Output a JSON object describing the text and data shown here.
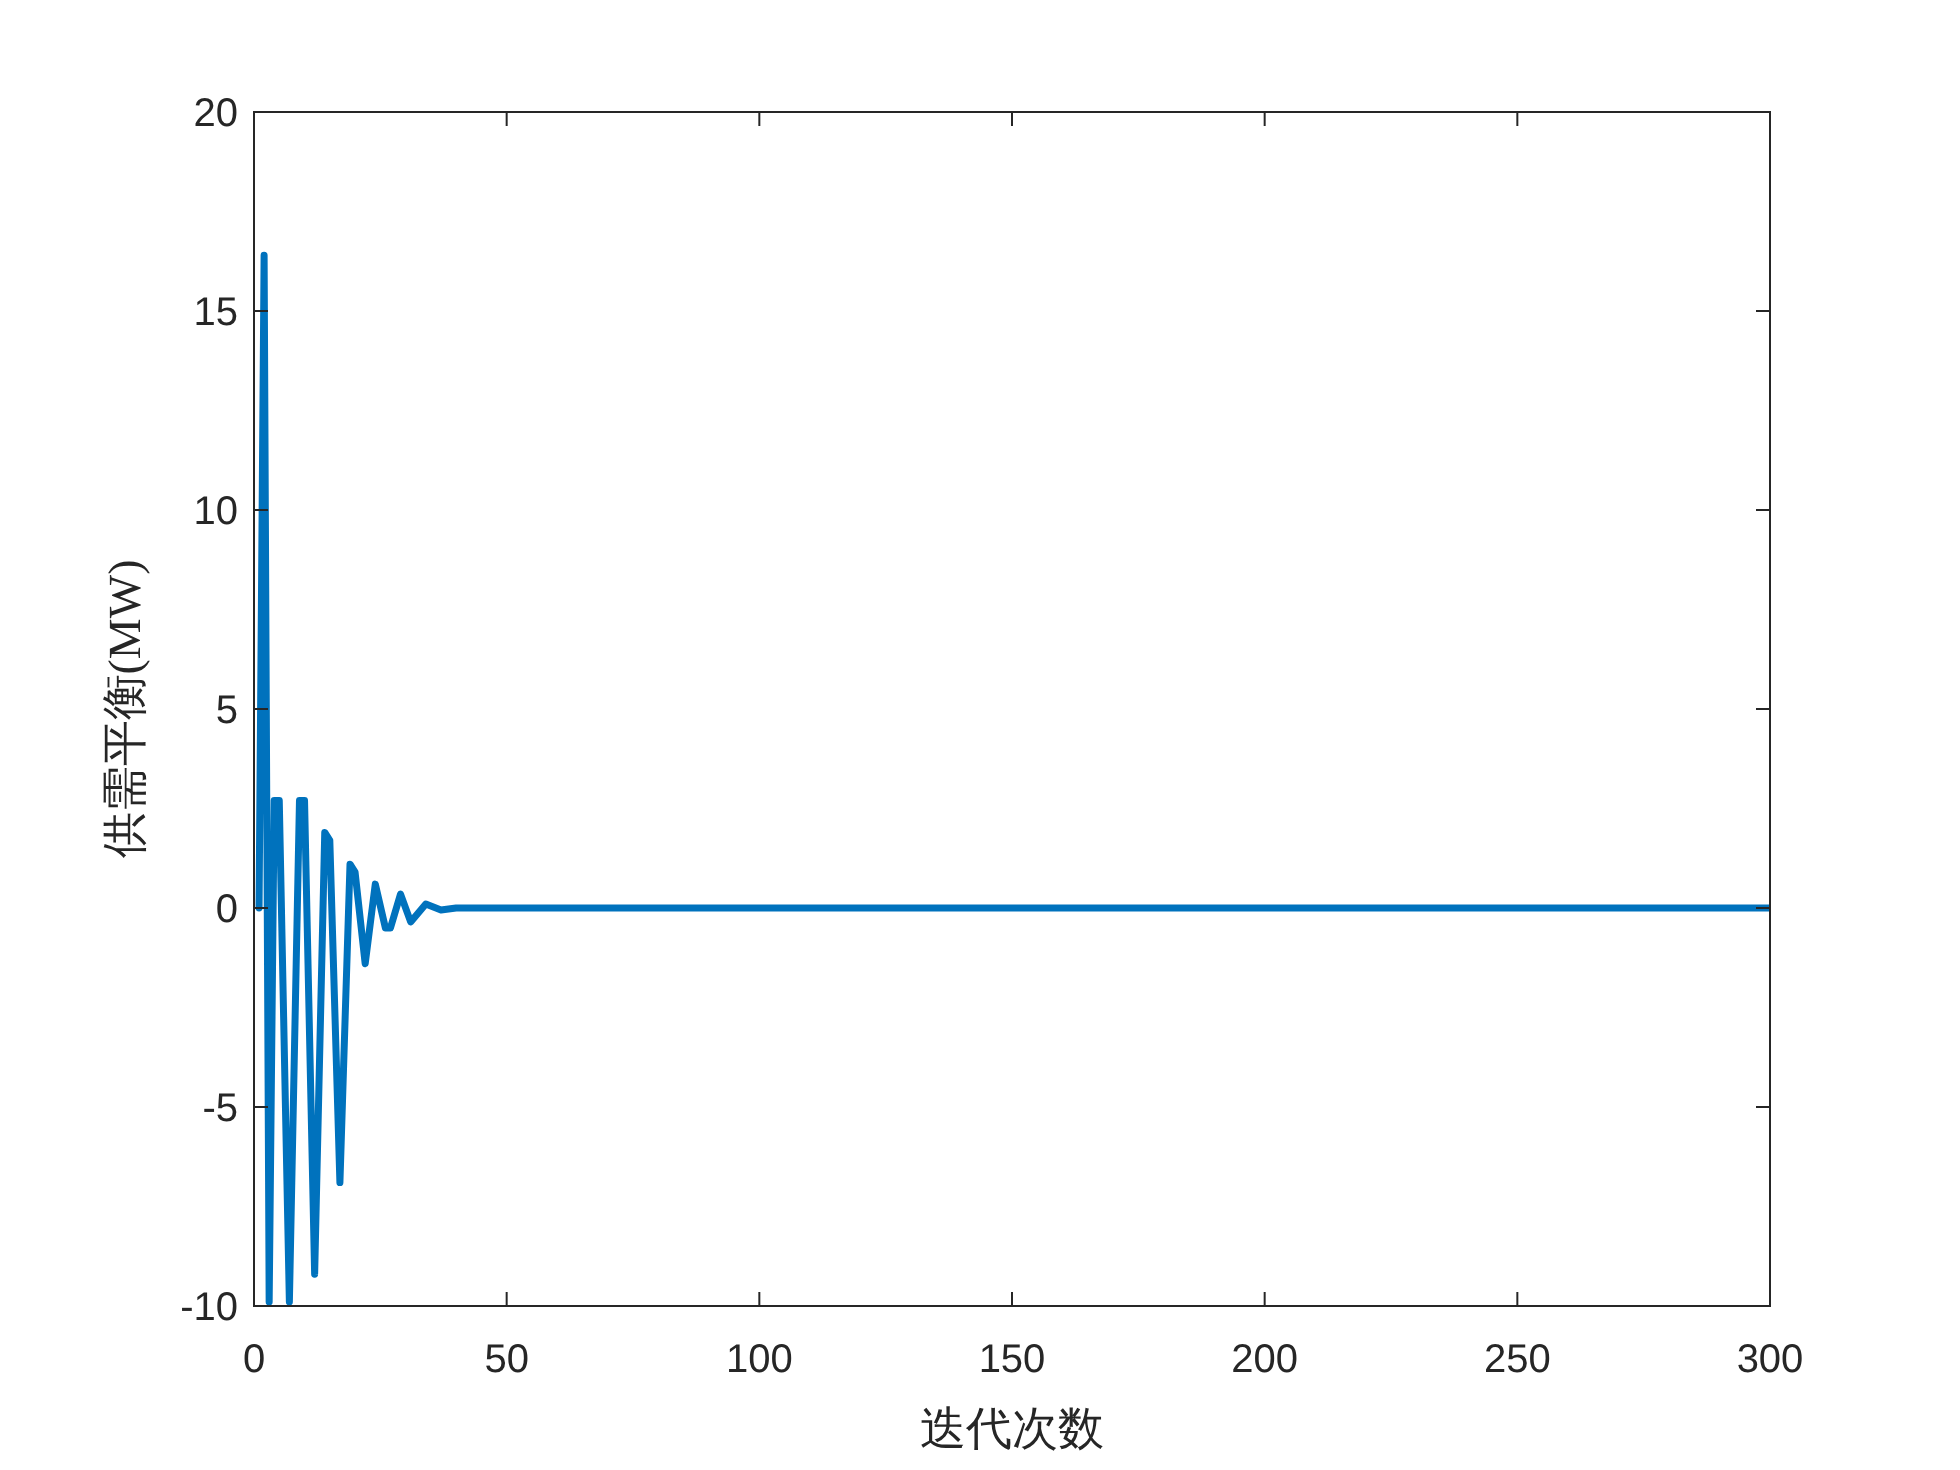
{
  "chart_data": {
    "type": "line",
    "xlabel": "迭代次数",
    "ylabel": "供需平衡(MW)",
    "xlim": [
      0,
      300
    ],
    "xticks": [
      0,
      50,
      100,
      150,
      200,
      250,
      300
    ],
    "ylim": [
      -10,
      20
    ],
    "yticks": [
      -10,
      -5,
      0,
      5,
      10,
      15,
      20
    ],
    "series": [
      {
        "color": "#0072bd",
        "x": [
          1,
          2,
          3,
          4,
          5,
          7,
          9,
          10,
          12,
          14,
          15,
          17,
          19,
          20,
          22,
          24,
          26,
          27,
          29,
          31,
          34,
          37,
          40,
          300
        ],
        "values": [
          0,
          16.4,
          -9.9,
          2.7,
          2.7,
          -9.9,
          2.7,
          2.7,
          -9.2,
          1.9,
          1.7,
          -6.9,
          1.1,
          0.9,
          -1.4,
          0.6,
          -0.5,
          -0.5,
          0.35,
          -0.35,
          0.1,
          -0.05,
          0,
          0
        ]
      }
    ]
  }
}
